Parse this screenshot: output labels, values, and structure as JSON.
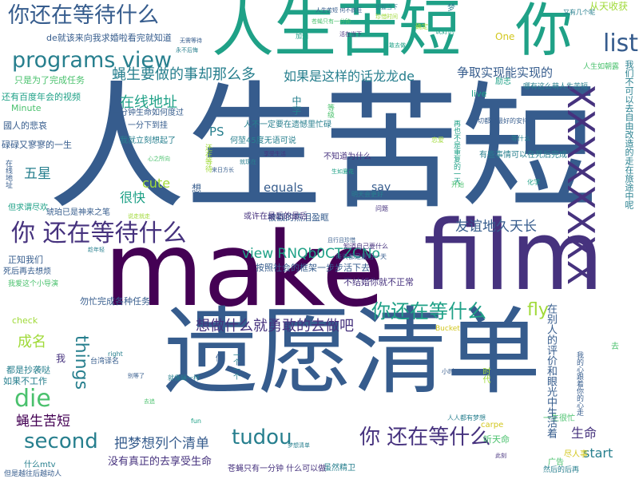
{
  "words": {
    "renshengkuduan_huge": "人生苦短",
    "make": "make",
    "film": "film",
    "yiyuanqingdan_big": "遗愿清单",
    "renshengkuduan_top": "人生苦短",
    "ni_top": "你",
    "xxx": "XXXXXXXX",
    "programs_view": "programs view",
    "nihaizai_top": "你还在等待什么",
    "list": "list",
    "nihaizai_mid": "你 还在等待什么",
    "die": "die",
    "second": "second",
    "tudou": "tudou",
    "nihaizai_bottom": "你 还在等什么",
    "nihaizai_right": "你还在等什么",
    "view_rnq": "view RNQb0CTZCNo",
    "youyi": "友谊地久天长",
    "ruguoshi": "如果是这样的话龙龙de",
    "zhengqu": "争取实现能实现的",
    "ruoren": "蝇生要做的事却那么多",
    "xiangzuo": "想做什么就勇敢的去做吧",
    "bameng": "把梦想列个清单",
    "yingsheng": "蝇生苦短",
    "zaixian": "在线地址",
    "things": "things",
    "fly": "fly",
    "wuxing": "五星",
    "chengming": "成名",
    "henkuai": "很快",
    "cute": "cute",
    "equals": "equals",
    "ps": "PS",
    "say": "say",
    "shengming": "生命",
    "start": "start",
    "de_jiugai": "de就该来向我求婚啦看完就知道",
    "zhiyou": "只是为了完成任务",
    "haiyou": "还有百度年会的视频",
    "guoren": "國人的悲哀",
    "minute": "Minute",
    "xinyi": "碌碌又寥寥的一生",
    "zhengzhi": "正知我们",
    "sihou": "死后再去想烦",
    "buxiang": "我爱这个小导演",
    "congwei": "勿忙完成各种任务",
    "doushi": "都是抄袭哒",
    "ruguobu": "如果不工作",
    "heren": "何堃45度无语可说",
    "buzhidao": "不知道为什么",
    "buzhidao2": "不结婚你就不正常",
    "beiqipian": "被戳的热泪盈眶",
    "anzhao": "按照社会的框架一步步活下去",
    "huozhe": "或许在最后的最后",
    "dan": "但求谓尽欢",
    "hupo": "琥珀已是神来之笔",
    "yifen": "一分钟生命如何度过",
    "yifenzhong": "一分下到挂",
    "wojiu": "我就立刻想起了",
    "renbu": "人不一定要在遗憾里忙碌",
    "meiyou": "没有真正的去享受生命",
    "zaixian2": "在线地址",
    "zhongzi": "中字",
    "shidaii": "时代",
    "renshengrujiaoxi": "人生如朝露",
    "nayou": "哪有这么萌人生苦短",
    "congshi": "从天收获",
    "youyouji": "又有几个呢",
    "lizhi": "励志",
    "youxie": "有些事情可以在死后完成",
    "wodu": "我们不可以去自由改造的走在旅途中呢",
    "zaibieren": "在别人的评价和眼光中生活着",
    "guanggao": "广告",
    "jinrenshi": "尽人事",
    "tingtian": "听天命",
    "yishengen": "一生很忙",
    "ranhou": "然后的后再",
    "shenmemtv": "什么mtv",
    "yishi": "但是越往后越动人",
    "taiwan": "台湾译名",
    "bucket": "Bucket",
    "carpe": "carpe",
    "check": "check",
    "fun": "fun",
    "right": "right",
    "live": "live",
    "one": "One",
    "zhongyu": "再也不是重复的一天",
    "haizai": "还在等待",
    "yigeyi": "一个一个",
    "dengji": "等级",
    "suiran": "虽然精卫",
    "zhouer": "苍蝇只有一分钟 什么可以做",
    "wozhen": "我的心跟着你的心走",
    "shuo": "说好的",
    "xiaoshi": "小时",
    "zhidao": "知道自己要什么",
    "mingtian": "明天会更好",
    "meitian": "每天都是最后一天",
    "kaishi": "开始",
    "jiuxiang": "就像蝇一样",
    "lianxi": "恋爱",
    "yiqie": "一切都是最好的安排",
    "renren": "人人都有梦想",
    "huaxue": "化学",
    "wenti": "问题",
    "dengshen": "等什么",
    "quedian": "确定",
    "jiayou": "加油",
    "xiang": "想",
    "wo": "我",
    "meng": "梦",
    "qu": "去",
    "zuo": "做",
    "xiao_a": "人生苦短 何不疯狂",
    "xiao_b": "苍蝇只有一分钟",
    "xiao_c": "把握当下",
    "xiao_d": "珍惜时间",
    "xiao_e": "活在当下",
    "xiao_f": "勇敢去做",
    "xiao_g": "无需等待",
    "xiao_h": "永不后悔",
    "xiao_i": "心之所向",
    "xiao_j": "来日方长",
    "xiao_k": "就现在",
    "xiao_l": "享受生活",
    "xiao_m": "生如夏花",
    "xiao_n": "且行且珍惜",
    "xiao_o": "说走就走",
    "xiao_p": "趁年轻",
    "xiao_q": "别等了",
    "xiao_r": "去追",
    "xiao_s": "梦想清单",
    "xiao_t": "此刻"
  }
}
